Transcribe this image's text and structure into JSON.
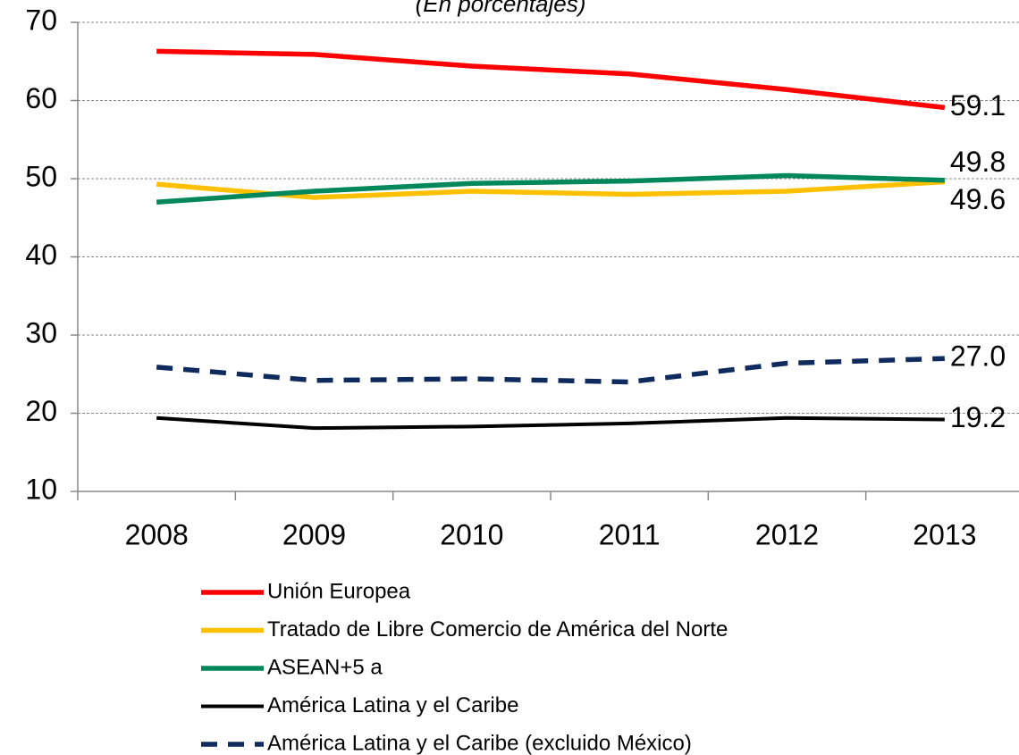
{
  "chart_data": {
    "type": "line",
    "subtitle": "(En porcentajes)",
    "categories": [
      "2008",
      "2009",
      "2010",
      "2011",
      "2012",
      "2013"
    ],
    "ylim": [
      10,
      70
    ],
    "yticks": [
      10,
      20,
      30,
      40,
      50,
      60,
      70
    ],
    "grid": true,
    "series": [
      {
        "name": "Unión Europea",
        "color": "#ff0000",
        "values": [
          66.3,
          65.9,
          64.4,
          63.4,
          61.4,
          59.1
        ],
        "value_labels": [
          null,
          null,
          null,
          null,
          null,
          "59.1"
        ]
      },
      {
        "name": "Tratado de Libre Comercio de América del Norte",
        "color": "#ffc000",
        "values": [
          49.3,
          47.6,
          48.4,
          48.0,
          48.4,
          49.6
        ],
        "value_labels": [
          null,
          null,
          null,
          null,
          null,
          "49.6"
        ]
      },
      {
        "name": "ASEAN+5 a",
        "color": "#00875a",
        "values": [
          47.0,
          48.4,
          49.4,
          49.7,
          50.4,
          49.8
        ],
        "value_labels": [
          null,
          null,
          null,
          null,
          null,
          "49.8"
        ]
      },
      {
        "name": "América Latina y el Caribe",
        "color": "#000000",
        "values": [
          19.4,
          18.1,
          18.3,
          18.7,
          19.4,
          19.2
        ],
        "value_labels": [
          null,
          null,
          null,
          null,
          null,
          "19.2"
        ]
      },
      {
        "name": "América Latina y el Caribe (excluido México)",
        "color": "#0f2a5c",
        "dashed": true,
        "values": [
          25.9,
          24.2,
          24.4,
          24.0,
          26.4,
          27.0
        ],
        "value_labels": [
          null,
          null,
          null,
          null,
          null,
          "27.0"
        ]
      }
    ]
  }
}
